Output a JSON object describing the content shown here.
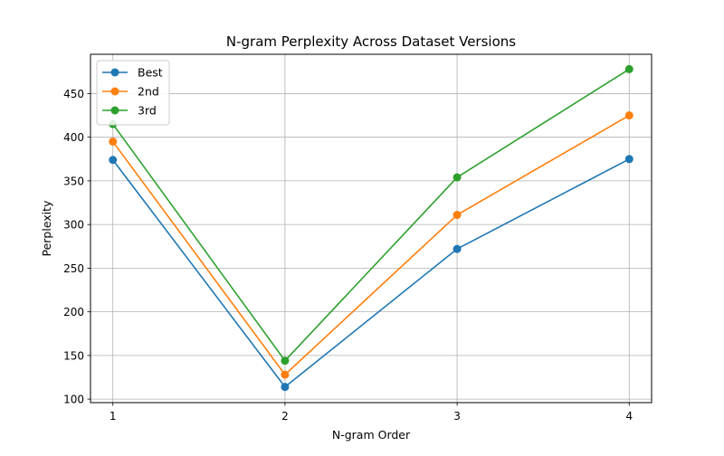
{
  "chart_data": {
    "type": "line",
    "title": "N-gram Perplexity Across Dataset Versions",
    "xlabel": "N-gram Order",
    "ylabel": "Perplexity",
    "x": [
      1,
      2,
      3,
      4
    ],
    "x_ticks": [
      1,
      2,
      3,
      4
    ],
    "y_ticks": [
      100,
      150,
      200,
      250,
      300,
      350,
      400,
      450
    ],
    "xlim": [
      0.87,
      4.13
    ],
    "ylim": [
      96,
      495
    ],
    "grid": true,
    "legend_position": "upper-left",
    "series": [
      {
        "name": "Best",
        "color": "#1f77b4",
        "values": [
          374,
          114,
          272,
          375
        ]
      },
      {
        "name": "2nd",
        "color": "#ff7f0e",
        "values": [
          395,
          128,
          311,
          425
        ]
      },
      {
        "name": "3rd",
        "color": "#2ca02c",
        "values": [
          415,
          144,
          354,
          478
        ]
      }
    ]
  }
}
